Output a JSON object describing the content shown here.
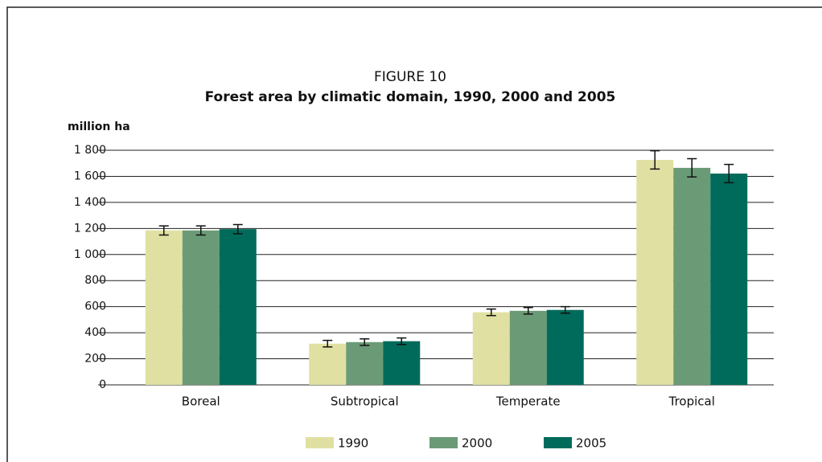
{
  "chart_data": {
    "type": "bar",
    "title": "FIGURE 10",
    "subtitle": "Forest area by climatic domain, 1990, 2000 and 2005",
    "y_label": "million ha",
    "categories": [
      "Boreal",
      "Subtropical",
      "Temperate",
      "Tropical"
    ],
    "series": [
      {
        "name": "1990",
        "color": "#e0e0a2",
        "values": [
          1185,
          316,
          557,
          1726
        ],
        "errors": [
          35,
          25,
          25,
          70
        ]
      },
      {
        "name": "2000",
        "color": "#6b9b76",
        "values": [
          1185,
          328,
          568,
          1665
        ],
        "errors": [
          35,
          25,
          25,
          70
        ]
      },
      {
        "name": "2005",
        "color": "#006b5b",
        "values": [
          1195,
          335,
          575,
          1621
        ],
        "errors": [
          35,
          25,
          25,
          70
        ]
      }
    ],
    "ylim": [
      0,
      1800
    ],
    "yticks": [
      0,
      200,
      400,
      600,
      800,
      {
        "value": 1000,
        "label": "1 000"
      },
      {
        "value": 1200,
        "label": "1 200"
      },
      {
        "value": 1400,
        "label": "1 400"
      },
      {
        "value": 1600,
        "label": "1 600"
      },
      {
        "value": 1800,
        "label": "1 800"
      }
    ],
    "grid": true,
    "legend": "bottom"
  }
}
